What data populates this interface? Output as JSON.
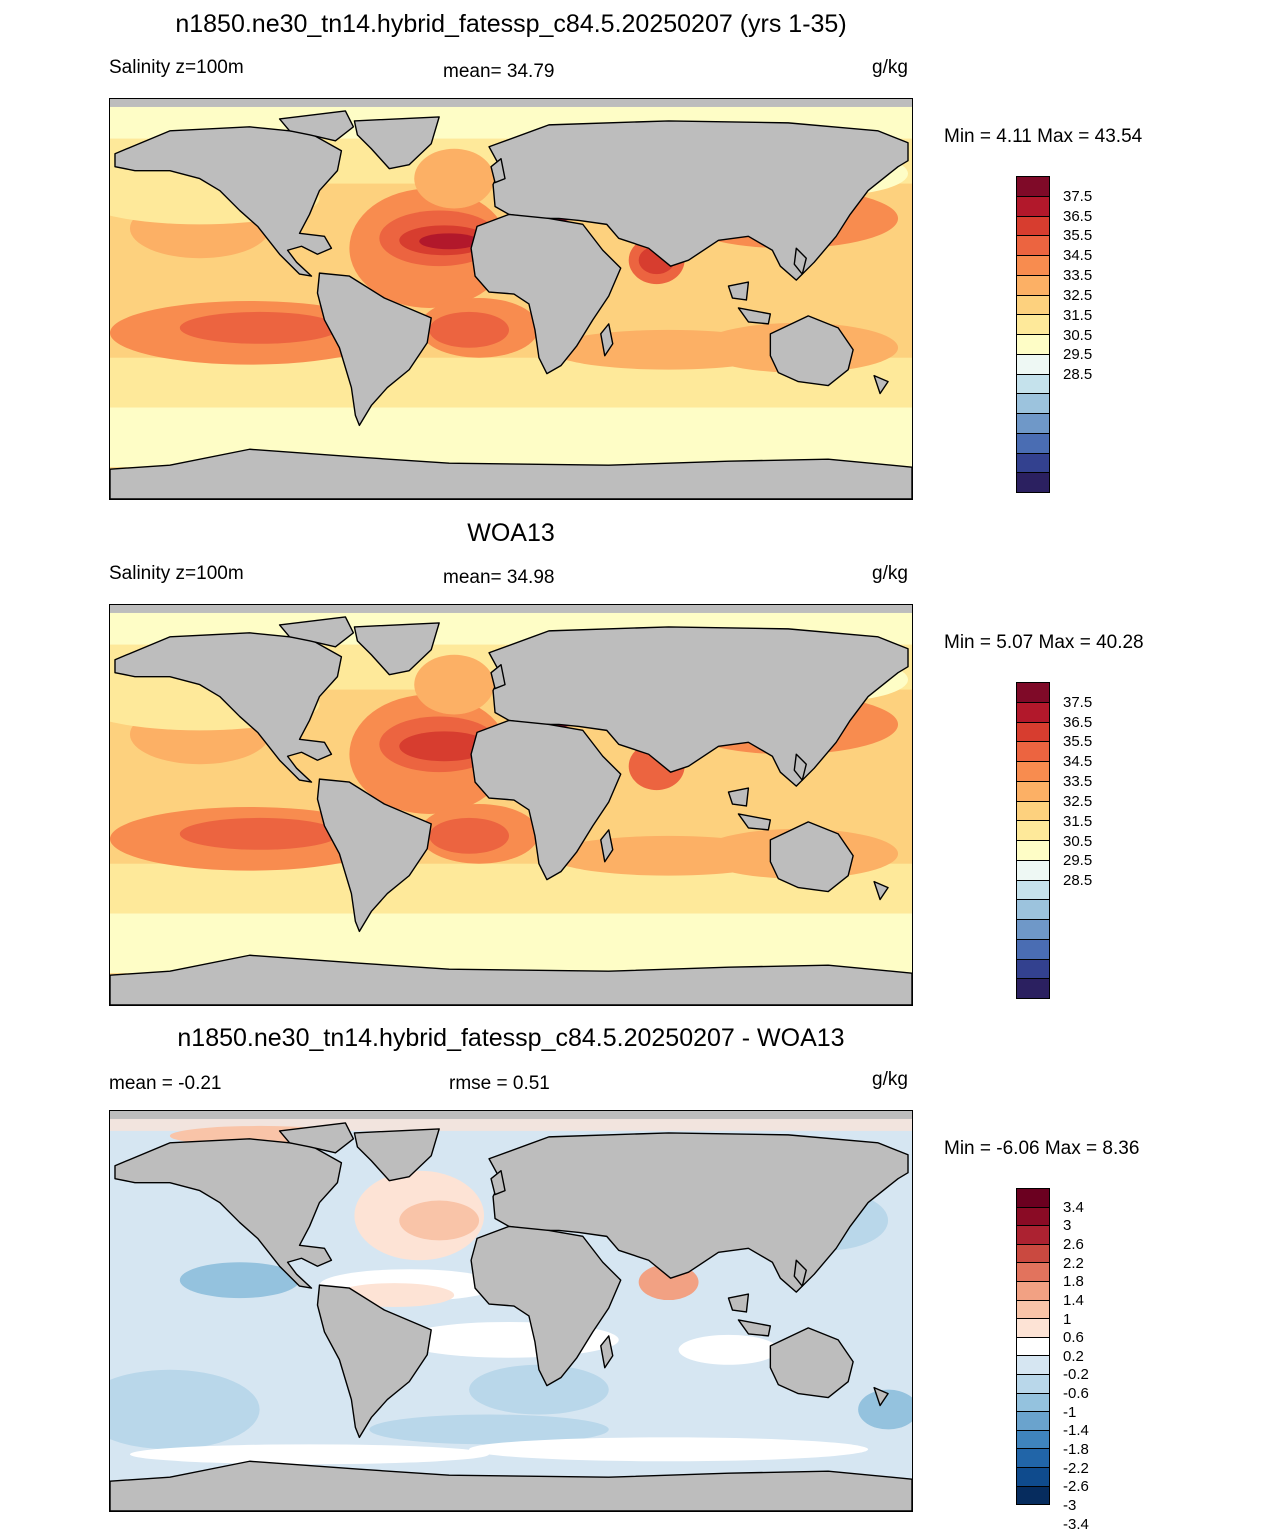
{
  "colors": {
    "land": "#bdbdbd",
    "abs_scale": [
      "#2b2060",
      "#33418f",
      "#4a6db3",
      "#6f98c8",
      "#9cc3dd",
      "#c5e2ec",
      "#eef8f4",
      "#fefdc6",
      "#fee99a",
      "#fdd17e",
      "#fcb065",
      "#f88c4f",
      "#ec6440",
      "#d73d2f",
      "#b2182b",
      "#7f0a28"
    ],
    "diff_scale": [
      "#062c5e",
      "#0f4b8d",
      "#2165a8",
      "#3f84bd",
      "#6aa3cd",
      "#94c2de",
      "#b9d7ea",
      "#d6e6f2",
      "#ffffff",
      "#fde3d5",
      "#f9c4a8",
      "#f2a183",
      "#e2735d",
      "#ca4940",
      "#ac2231",
      "#8a0b25",
      "#6b0020"
    ]
  },
  "panels": [
    {
      "title": "n1850.ne30_tn14.hybrid_fatessp_c84.5.20250207 (yrs 1-35)",
      "left": "Salinity z=100m",
      "center": "mean=  34.79",
      "right": "g/kg",
      "minmax": "Min =   4.11 Max =  43.54",
      "scale": "abs",
      "labels": [
        "37.5",
        "36.5",
        "35.5",
        "34.5",
        "33.5",
        "32.5",
        "31.5",
        "30.5",
        "29.5",
        "28.5"
      ]
    },
    {
      "title": "WOA13",
      "left": "Salinity z=100m",
      "center": "mean=  34.98",
      "right": "g/kg",
      "minmax": "Min =   5.07 Max =  40.28",
      "scale": "abs",
      "labels": [
        "37.5",
        "36.5",
        "35.5",
        "34.5",
        "33.5",
        "32.5",
        "31.5",
        "30.5",
        "29.5",
        "28.5"
      ]
    },
    {
      "title": "n1850.ne30_tn14.hybrid_fatessp_c84.5.20250207 - WOA13",
      "left": "mean =  -0.21",
      "center": "rmse =   0.51",
      "right": "g/kg",
      "minmax": "Min =  -6.06 Max =   8.36",
      "scale": "diff",
      "labels": [
        "3.4",
        "3",
        "2.6",
        "2.2",
        "1.8",
        "1.4",
        "1",
        "0.6",
        "0.2",
        "-0.2",
        "-0.6",
        "-1",
        "-1.4",
        "-1.8",
        "-2.2",
        "-2.6",
        "-3",
        "-3.4"
      ]
    }
  ]
}
